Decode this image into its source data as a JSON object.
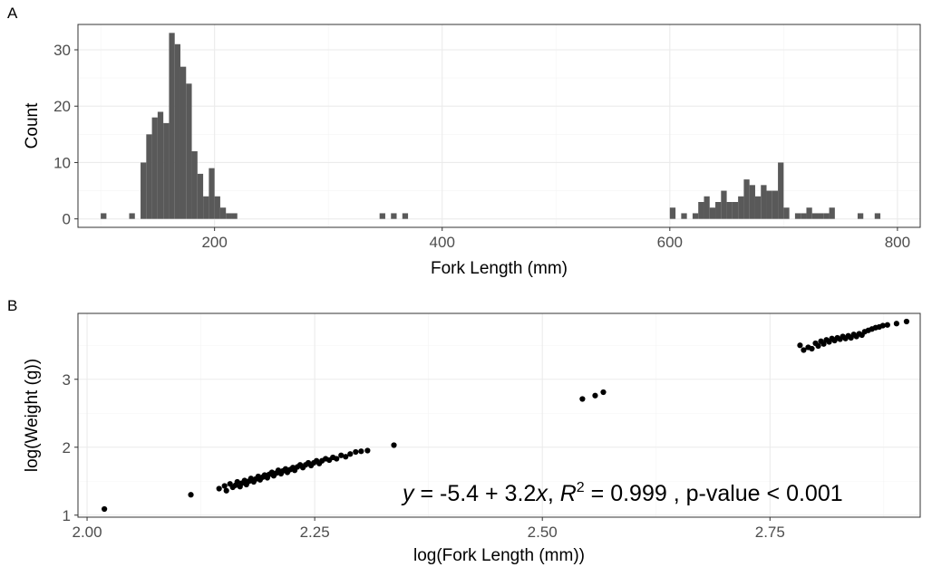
{
  "chart_data": [
    {
      "panel": "A",
      "type": "bar",
      "xlabel": "Fork Length (mm)",
      "ylabel": "Count",
      "xlim": [
        80,
        820
      ],
      "ylim": [
        -1.5,
        34.5
      ],
      "x_ticks": [
        200,
        400,
        600,
        800
      ],
      "y_ticks": [
        0,
        10,
        20,
        30
      ],
      "bin_width": 5,
      "bins": [
        {
          "x": 102.5,
          "count": 1
        },
        {
          "x": 127.5,
          "count": 1
        },
        {
          "x": 137.5,
          "count": 10
        },
        {
          "x": 142.5,
          "count": 15
        },
        {
          "x": 147.5,
          "count": 18
        },
        {
          "x": 152.5,
          "count": 19
        },
        {
          "x": 157.5,
          "count": 17
        },
        {
          "x": 162.5,
          "count": 33
        },
        {
          "x": 167.5,
          "count": 31
        },
        {
          "x": 172.5,
          "count": 27
        },
        {
          "x": 177.5,
          "count": 24
        },
        {
          "x": 182.5,
          "count": 12
        },
        {
          "x": 187.5,
          "count": 8
        },
        {
          "x": 192.5,
          "count": 4
        },
        {
          "x": 197.5,
          "count": 9
        },
        {
          "x": 202.5,
          "count": 4
        },
        {
          "x": 207.5,
          "count": 2
        },
        {
          "x": 212.5,
          "count": 1
        },
        {
          "x": 217.5,
          "count": 1
        },
        {
          "x": 347.5,
          "count": 1
        },
        {
          "x": 357.5,
          "count": 1
        },
        {
          "x": 367.5,
          "count": 1
        },
        {
          "x": 602.5,
          "count": 2
        },
        {
          "x": 612.5,
          "count": 1
        },
        {
          "x": 622.5,
          "count": 1
        },
        {
          "x": 627.5,
          "count": 3
        },
        {
          "x": 632.5,
          "count": 4
        },
        {
          "x": 637.5,
          "count": 2
        },
        {
          "x": 642.5,
          "count": 3
        },
        {
          "x": 647.5,
          "count": 5
        },
        {
          "x": 652.5,
          "count": 3
        },
        {
          "x": 657.5,
          "count": 3
        },
        {
          "x": 662.5,
          "count": 4
        },
        {
          "x": 667.5,
          "count": 7
        },
        {
          "x": 672.5,
          "count": 6
        },
        {
          "x": 677.5,
          "count": 4
        },
        {
          "x": 682.5,
          "count": 6
        },
        {
          "x": 687.5,
          "count": 5
        },
        {
          "x": 692.5,
          "count": 5
        },
        {
          "x": 697.5,
          "count": 10
        },
        {
          "x": 702.5,
          "count": 2
        },
        {
          "x": 712.5,
          "count": 1
        },
        {
          "x": 717.5,
          "count": 1
        },
        {
          "x": 722.5,
          "count": 2
        },
        {
          "x": 727.5,
          "count": 1
        },
        {
          "x": 732.5,
          "count": 1
        },
        {
          "x": 737.5,
          "count": 1
        },
        {
          "x": 742.5,
          "count": 2
        },
        {
          "x": 767.5,
          "count": 1
        },
        {
          "x": 782.5,
          "count": 1
        }
      ]
    },
    {
      "panel": "B",
      "type": "scatter",
      "xlabel": "log(Fork Length (mm))",
      "ylabel": "log(Weight (g))",
      "xlim": [
        1.99,
        2.915
      ],
      "ylim": [
        0.97,
        3.97
      ],
      "x_ticks": [
        2.0,
        2.25,
        2.5,
        2.75
      ],
      "x_tick_labels": [
        "2.00",
        "2.25",
        "2.50",
        "2.75"
      ],
      "y_ticks": [
        1,
        2,
        3
      ],
      "fit": {
        "intercept": -5.4,
        "slope": 3.2,
        "r2": 0.999
      },
      "annotation": {
        "lhs": "y",
        "eq": " = -5.4 + 3.2",
        "x": "x",
        "sep": ", ",
        "r": "R",
        "sup": "2",
        "rest": " = 0.999 , p-value < 0.001"
      },
      "points": [
        [
          2.019,
          1.09
        ],
        [
          2.114,
          1.3
        ],
        [
          2.337,
          2.03
        ],
        [
          2.544,
          2.71
        ],
        [
          2.558,
          2.76
        ],
        [
          2.567,
          2.81
        ],
        [
          2.145,
          1.39
        ],
        [
          2.151,
          1.43
        ],
        [
          2.153,
          1.36
        ],
        [
          2.157,
          1.46
        ],
        [
          2.16,
          1.41
        ],
        [
          2.163,
          1.44
        ],
        [
          2.165,
          1.49
        ],
        [
          2.168,
          1.42
        ],
        [
          2.17,
          1.47
        ],
        [
          2.173,
          1.51
        ],
        [
          2.175,
          1.45
        ],
        [
          2.178,
          1.5
        ],
        [
          2.18,
          1.54
        ],
        [
          2.183,
          1.49
        ],
        [
          2.185,
          1.53
        ],
        [
          2.188,
          1.57
        ],
        [
          2.19,
          1.52
        ],
        [
          2.193,
          1.56
        ],
        [
          2.195,
          1.59
        ],
        [
          2.198,
          1.55
        ],
        [
          2.2,
          1.6
        ],
        [
          2.203,
          1.63
        ],
        [
          2.205,
          1.58
        ],
        [
          2.208,
          1.62
        ],
        [
          2.21,
          1.66
        ],
        [
          2.213,
          1.61
        ],
        [
          2.215,
          1.65
        ],
        [
          2.218,
          1.68
        ],
        [
          2.22,
          1.63
        ],
        [
          2.223,
          1.67
        ],
        [
          2.226,
          1.7
        ],
        [
          2.228,
          1.66
        ],
        [
          2.231,
          1.71
        ],
        [
          2.234,
          1.74
        ],
        [
          2.237,
          1.7
        ],
        [
          2.24,
          1.74
        ],
        [
          2.243,
          1.77
        ],
        [
          2.246,
          1.73
        ],
        [
          2.249,
          1.77
        ],
        [
          2.252,
          1.8
        ],
        [
          2.255,
          1.76
        ],
        [
          2.258,
          1.8
        ],
        [
          2.262,
          1.83
        ],
        [
          2.266,
          1.81
        ],
        [
          2.27,
          1.85
        ],
        [
          2.274,
          1.83
        ],
        [
          2.279,
          1.88
        ],
        [
          2.284,
          1.86
        ],
        [
          2.289,
          1.9
        ],
        [
          2.295,
          1.93
        ],
        [
          2.301,
          1.94
        ],
        [
          2.308,
          1.95
        ],
        [
          2.783,
          3.5
        ],
        [
          2.787,
          3.43
        ],
        [
          2.792,
          3.47
        ],
        [
          2.796,
          3.45
        ],
        [
          2.8,
          3.53
        ],
        [
          2.803,
          3.49
        ],
        [
          2.806,
          3.56
        ],
        [
          2.809,
          3.52
        ],
        [
          2.812,
          3.58
        ],
        [
          2.815,
          3.55
        ],
        [
          2.818,
          3.6
        ],
        [
          2.821,
          3.57
        ],
        [
          2.824,
          3.61
        ],
        [
          2.827,
          3.59
        ],
        [
          2.83,
          3.63
        ],
        [
          2.833,
          3.6
        ],
        [
          2.836,
          3.64
        ],
        [
          2.839,
          3.61
        ],
        [
          2.842,
          3.66
        ],
        [
          2.845,
          3.63
        ],
        [
          2.848,
          3.67
        ],
        [
          2.851,
          3.65
        ],
        [
          2.854,
          3.7
        ],
        [
          2.858,
          3.72
        ],
        [
          2.862,
          3.74
        ],
        [
          2.866,
          3.76
        ],
        [
          2.87,
          3.77
        ],
        [
          2.874,
          3.79
        ],
        [
          2.879,
          3.8
        ],
        [
          2.889,
          3.82
        ],
        [
          2.9,
          3.85
        ]
      ]
    }
  ]
}
